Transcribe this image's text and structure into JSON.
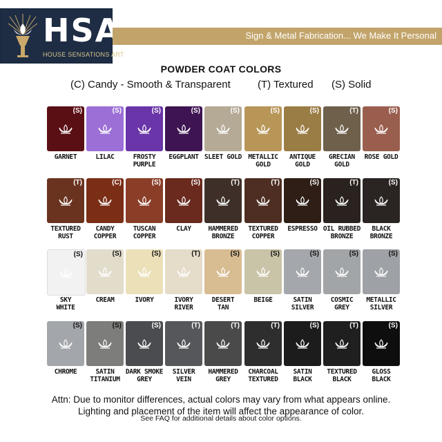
{
  "brand": {
    "name": "HSA",
    "subtitle": "HOUSE SENSATIONS ART",
    "tagline": "Sign & Metal Fabrication... We Make It Personal"
  },
  "heading": "POWDER COAT COLORS",
  "legend": [
    "(C) Candy - Smooth & Transparent",
    "(T) Textured",
    "(S) Solid"
  ],
  "swatches": [
    [
      {
        "name": "GARNET",
        "code": "(S)",
        "color": "#5a0f14",
        "text": "light"
      },
      {
        "name": "LILAC",
        "code": "(S)",
        "color": "#9b6fd6",
        "text": "light"
      },
      {
        "name": "FROSTY PURPLE",
        "code": "(S)",
        "color": "#6a35a8",
        "text": "light"
      },
      {
        "name": "EGGPLANT",
        "code": "(S)",
        "color": "#3e1452",
        "text": "light"
      },
      {
        "name": "SLEET GOLD",
        "code": "(S)",
        "color": "#b5aa95",
        "text": "light"
      },
      {
        "name": "METALLIC GOLD",
        "code": "(S)",
        "color": "#b89658",
        "text": "light"
      },
      {
        "name": "ANTIQUE GOLD",
        "code": "(S)",
        "color": "#9a7c45",
        "text": "light"
      },
      {
        "name": "GRECIAN GOLD",
        "code": "(T)",
        "color": "#6e604b",
        "text": "light"
      },
      {
        "name": "ROSE GOLD",
        "code": "(S)",
        "color": "#9a5e4e",
        "text": "light"
      }
    ],
    [
      {
        "name": "TEXTURED RUST",
        "code": "(T)",
        "color": "#6a3320",
        "text": "light"
      },
      {
        "name": "CANDY COPPER",
        "code": "(C)",
        "color": "#7a2e16",
        "text": "light"
      },
      {
        "name": "TUSCAN COPPER",
        "code": "(S)",
        "color": "#8a3e28",
        "text": "light"
      },
      {
        "name": "CLAY",
        "code": "(S)",
        "color": "#6a2a1d",
        "text": "light"
      },
      {
        "name": "HAMMERED BRONZE",
        "code": "(T)",
        "color": "#3e3028",
        "text": "light"
      },
      {
        "name": "TEXTURED COPPER",
        "code": "(T)",
        "color": "#4e2e22",
        "text": "light"
      },
      {
        "name": "ESPRESSO",
        "code": "(S)",
        "color": "#2e1e16",
        "text": "light"
      },
      {
        "name": "OIL RUBBED BRONZE",
        "code": "(T)",
        "color": "#2a221e",
        "text": "light"
      },
      {
        "name": "BLACK BRONZE",
        "code": "(S)",
        "color": "#2a2522",
        "text": "light"
      }
    ],
    [
      {
        "name": "SKY WHITE",
        "code": "(S)",
        "color": "#f2f2f2",
        "text": "dark"
      },
      {
        "name": "CREAM",
        "code": "(S)",
        "color": "#e2dccb",
        "text": "dark"
      },
      {
        "name": "IVORY",
        "code": "(S)",
        "color": "#ece0b8",
        "text": "dark"
      },
      {
        "name": "IVORY RIVER",
        "code": "(T)",
        "color": "#e5dcc9",
        "text": "dark"
      },
      {
        "name": "DESERT TAN",
        "code": "(S)",
        "color": "#d8bc92",
        "text": "dark"
      },
      {
        "name": "BEIGE",
        "code": "(S)",
        "color": "#c9c3a8",
        "text": "dark"
      },
      {
        "name": "SATIN SILVER",
        "code": "(S)",
        "color": "#a4a7ab",
        "text": "dark"
      },
      {
        "name": "COSMIC GREY",
        "code": "(S)",
        "color": "#a2a5a8",
        "text": "dark"
      },
      {
        "name": "METALLIC SILVER",
        "code": "(S)",
        "color": "#9ea1a5",
        "text": "dark"
      }
    ],
    [
      {
        "name": "CHROME",
        "code": "(S)",
        "color": "#a3a6ab",
        "text": "dark"
      },
      {
        "name": "SATIN TITANIUM",
        "code": "(S)",
        "color": "#7d7d7c",
        "text": "dark"
      },
      {
        "name": "DARK SMOKE GREY",
        "code": "(S)",
        "color": "#4a4c4f",
        "text": "light"
      },
      {
        "name": "SILVER VEIN",
        "code": "(T)",
        "color": "#55575a",
        "text": "light"
      },
      {
        "name": "HAMMERED GREY",
        "code": "(T)",
        "color": "#4a4a4a",
        "text": "light"
      },
      {
        "name": "CHARCOAL TEXTURED",
        "code": "(T)",
        "color": "#2e2e2e",
        "text": "light"
      },
      {
        "name": "SATIN BLACK",
        "code": "(S)",
        "color": "#1c1c1c",
        "text": "light"
      },
      {
        "name": "TEXTURED BLACK",
        "code": "(T)",
        "color": "#1f1f1f",
        "text": "light"
      },
      {
        "name": "GLOSS BLACK",
        "code": "(S)",
        "color": "#0e0e0e",
        "text": "light"
      }
    ]
  ],
  "notes": {
    "line1": "Attn: Due to monitor differences, actual colors may vary from what appears online.",
    "line2": "Lighting and placement of the item will affect the appearance of color.",
    "line3": "See FAQ for additional details about color options."
  }
}
